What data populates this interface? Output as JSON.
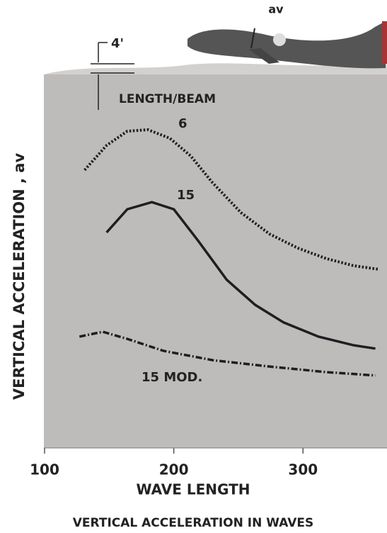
{
  "chart_data": {
    "type": "line",
    "title": "VERTICAL ACCELERATION IN WAVES",
    "xlabel": "WAVE LENGTH",
    "ylabel": "VERTICAL ACCELERATION , av",
    "annotations": [
      "LENGTH/BEAM",
      "4'",
      "av"
    ],
    "xlim": [
      100,
      365
    ],
    "xticks": [
      100,
      200,
      300
    ],
    "ylim": [
      0,
      10
    ],
    "series": [
      {
        "name": "6",
        "color": "#1e1e22",
        "style": "dotted",
        "x": [
          131,
          148,
          164,
          180,
          197,
          213,
          230,
          252,
          274,
          296,
          318,
          339,
          359
        ],
        "values": [
          7.44,
          8.1,
          8.48,
          8.52,
          8.29,
          7.82,
          7.1,
          6.3,
          5.73,
          5.35,
          5.07,
          4.88,
          4.78
        ]
      },
      {
        "name": "15",
        "color": "#1e1e22",
        "style": "solid",
        "x": [
          148,
          164,
          183,
          200,
          219,
          241,
          263,
          285,
          312,
          339,
          356
        ],
        "values": [
          5.77,
          6.39,
          6.58,
          6.39,
          5.54,
          4.5,
          3.83,
          3.36,
          2.98,
          2.75,
          2.66
        ]
      },
      {
        "name": "15 MOD.",
        "color": "#1e1e22",
        "style": "dashdot",
        "x": [
          127,
          145,
          164,
          192,
          230,
          274,
          318,
          356
        ],
        "values": [
          2.98,
          3.11,
          2.92,
          2.6,
          2.35,
          2.18,
          2.03,
          1.94
        ]
      }
    ]
  }
}
